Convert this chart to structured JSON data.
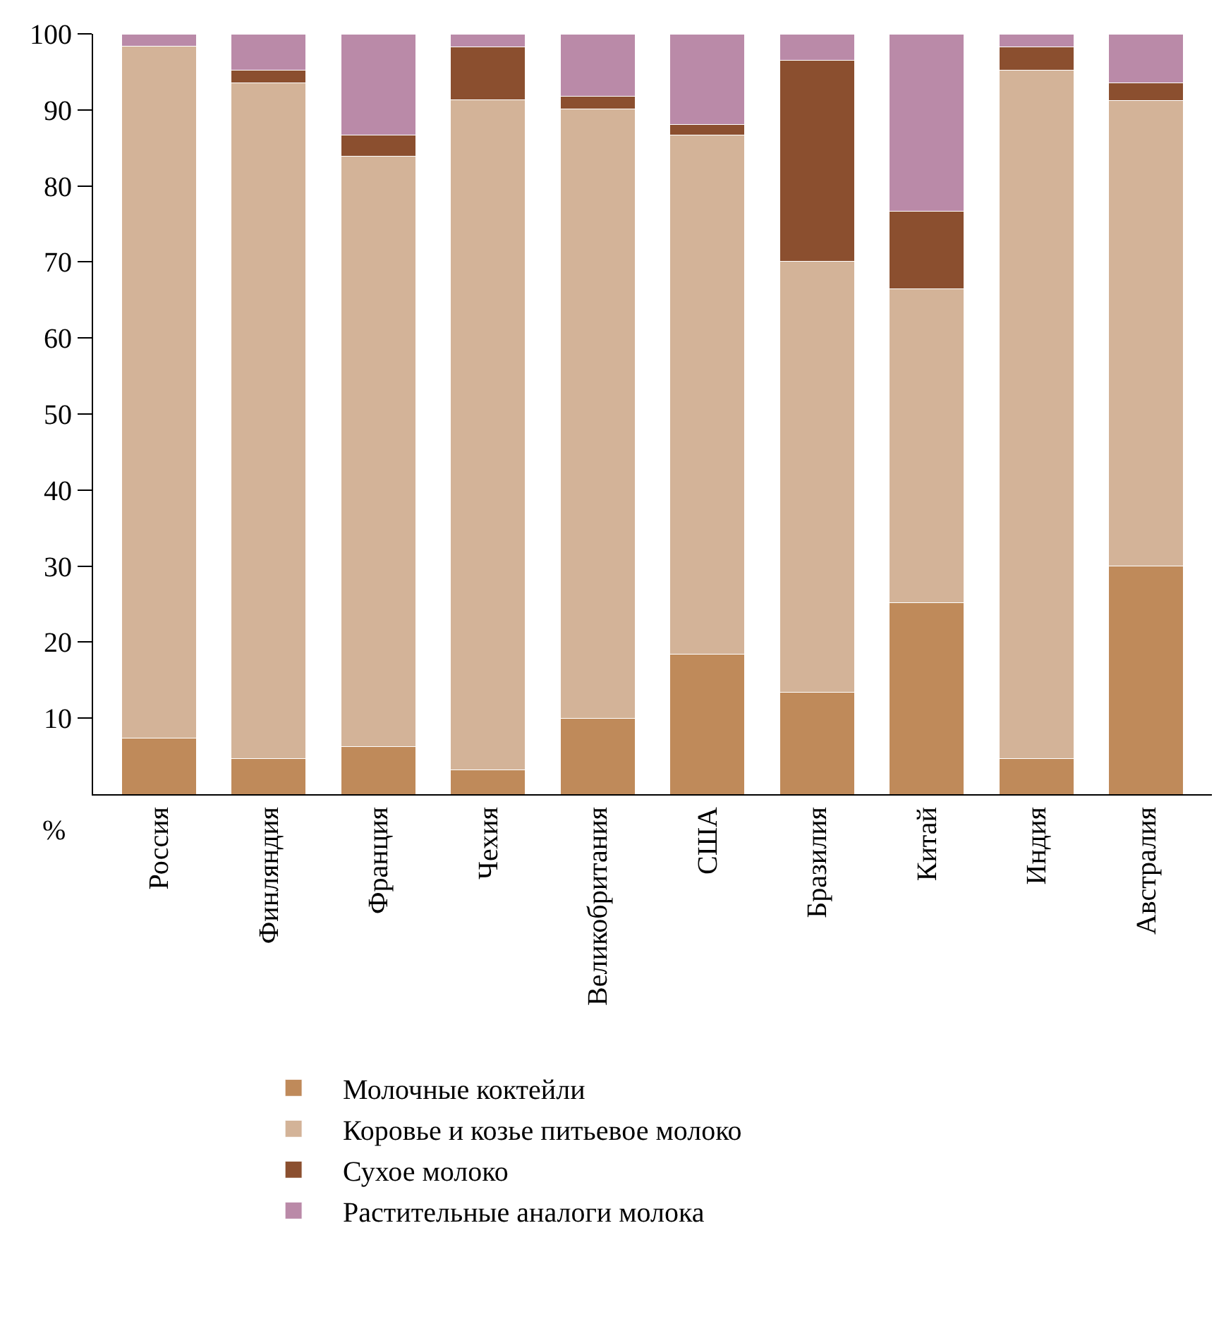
{
  "chart_data": {
    "type": "bar",
    "stacked": true,
    "ylabel": "%",
    "categories": [
      "Россия",
      "Финляндия",
      "Франция",
      "Чехия",
      "Великобритания",
      "США",
      "Бразилия",
      "Китай",
      "Индия",
      "Австралия"
    ],
    "series": [
      {
        "name": "Молочные коктейли",
        "color": "#bf8a5a",
        "values": [
          7.4,
          4.7,
          6.3,
          3.2,
          10,
          18.4,
          13.4,
          25.2,
          4.7,
          30
        ]
      },
      {
        "name": "Коровье и козье питьевое молоко",
        "color": "#d3b398",
        "values": [
          91,
          88.9,
          77.6,
          88.1,
          80.1,
          68.3,
          56.7,
          41.3,
          90.5,
          61.2
        ]
      },
      {
        "name": "Сухое молоко",
        "color": "#8b4f2f",
        "values": [
          0,
          1.6,
          2.8,
          7,
          1.7,
          1.4,
          26.4,
          10.2,
          3.1,
          2.4
        ]
      },
      {
        "name": "Растительные аналоги молока",
        "color": "#ba8aa8",
        "values": [
          1.6,
          4.8,
          13.3,
          1.7,
          8.2,
          11.9,
          3.5,
          23.3,
          1.7,
          6.4
        ]
      }
    ],
    "ylim": [
      0,
      100
    ],
    "yticks": [
      10,
      20,
      30,
      40,
      50,
      60,
      70,
      80,
      90,
      100
    ],
    "grid": false,
    "legend": "bottom"
  }
}
